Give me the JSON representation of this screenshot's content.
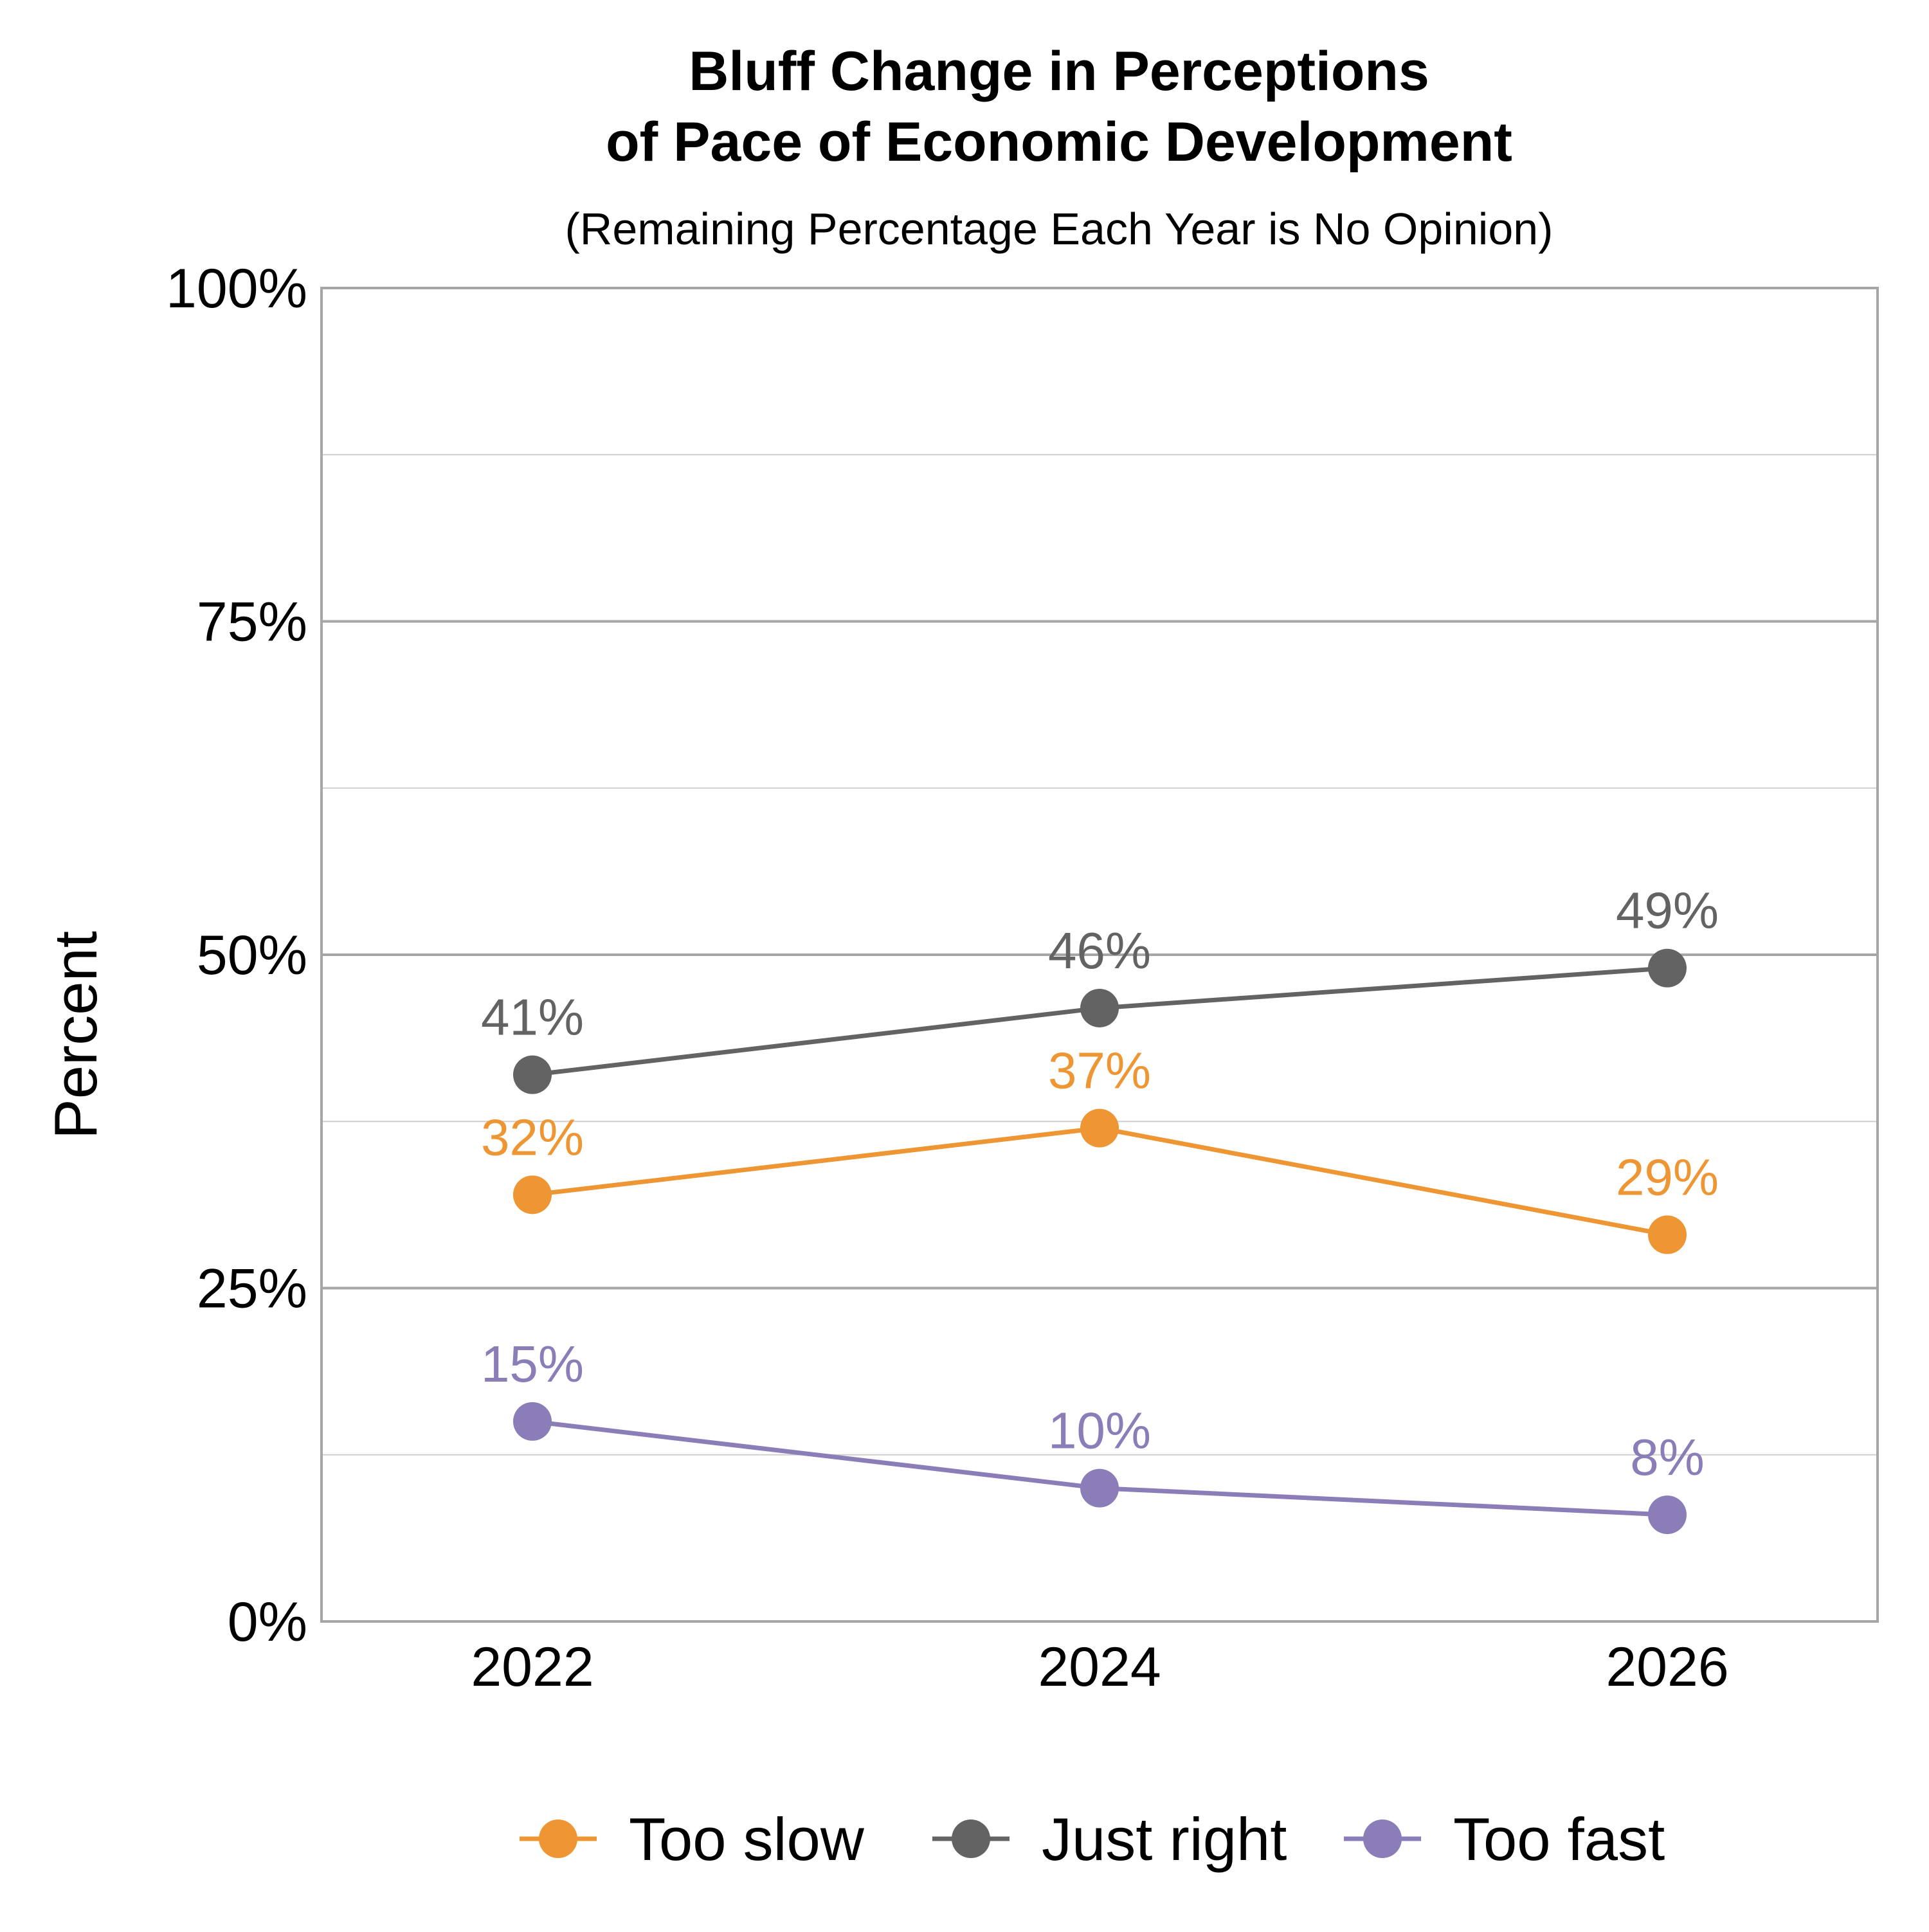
{
  "chart_data": {
    "type": "line",
    "title_lines": [
      "Bluff Change in Perceptions",
      "of Pace of Economic Development"
    ],
    "subtitle": "(Remaining Percentage Each Year is No Opinion)",
    "xlabel": "",
    "ylabel": "Percent",
    "categories": [
      "2022",
      "2024",
      "2026"
    ],
    "ylim": [
      0,
      100
    ],
    "yticks": [
      0,
      25,
      50,
      75,
      100
    ],
    "ytick_labels": [
      "0%",
      "25%",
      "50%",
      "75%",
      "100%"
    ],
    "minor_gridlines": [
      12.5,
      37.5,
      62.5,
      87.5
    ],
    "grid": true,
    "legend_position": "bottom",
    "series": [
      {
        "name": "Too slow",
        "color": "#EE9633",
        "values": [
          32,
          37,
          29
        ],
        "labels": [
          "32%",
          "37%",
          "29%"
        ]
      },
      {
        "name": "Just right",
        "color": "#636363",
        "values": [
          41,
          46,
          49
        ],
        "labels": [
          "41%",
          "46%",
          "49%"
        ]
      },
      {
        "name": "Too fast",
        "color": "#8A7DB8",
        "values": [
          15,
          10,
          8
        ],
        "labels": [
          "15%",
          "10%",
          "8%"
        ]
      }
    ]
  }
}
